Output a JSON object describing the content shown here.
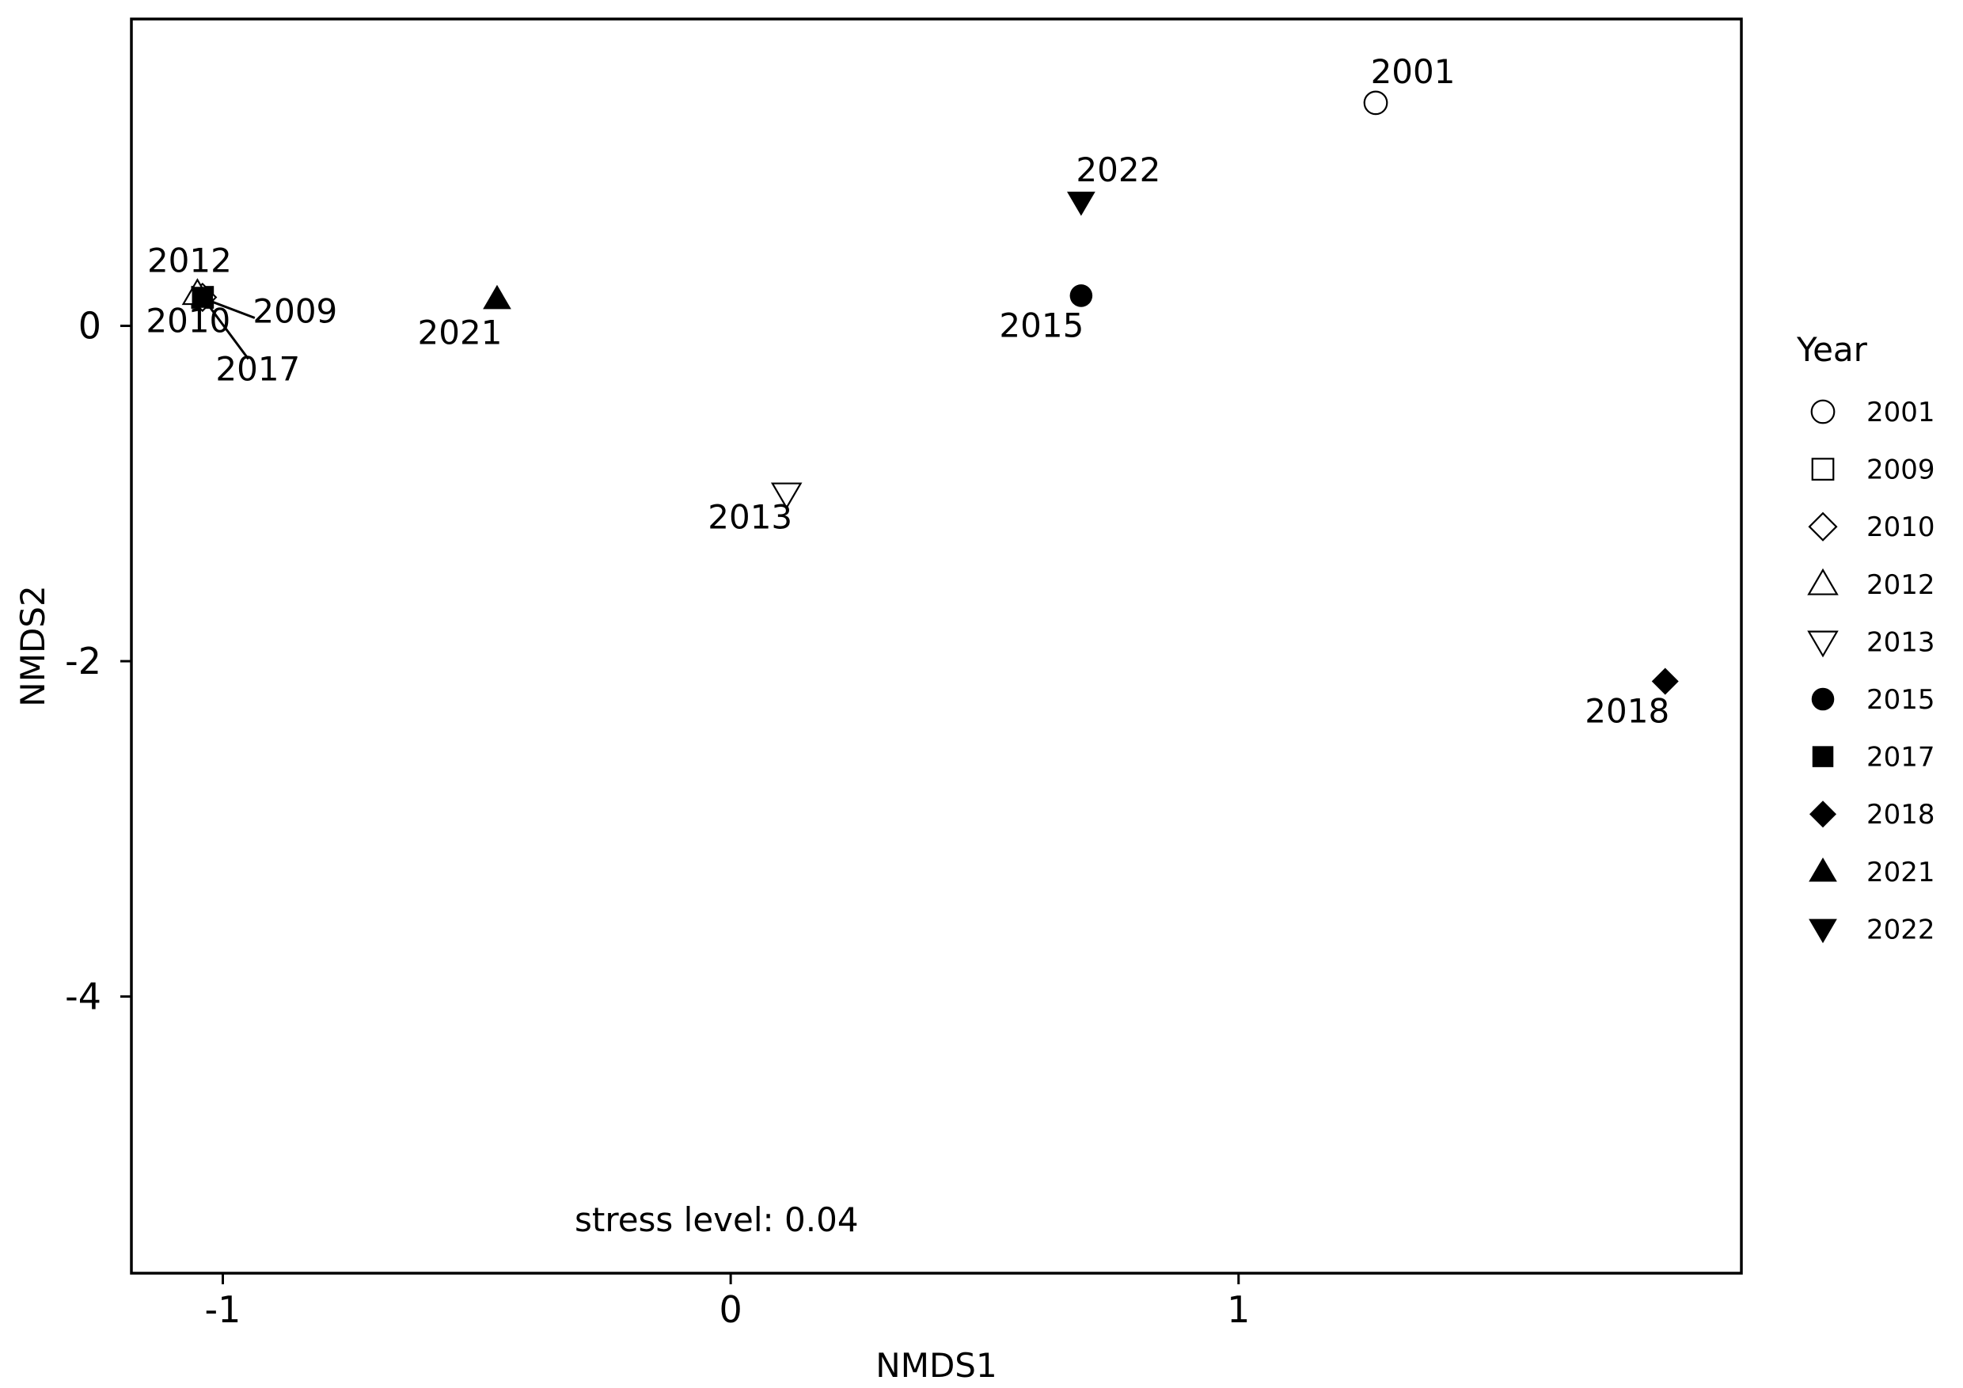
{
  "chart_data": {
    "type": "scatter",
    "xlabel": "NMDS1",
    "ylabel": "NMDS2",
    "xlim": [
      -1.18,
      1.99
    ],
    "ylim": [
      -5.65,
      1.83
    ],
    "x_ticks": [
      -1,
      0,
      1
    ],
    "y_ticks": [
      0,
      -2,
      -4
    ],
    "x_tick_labels": [
      "-1",
      "0",
      "1"
    ],
    "y_tick_labels": [
      "0",
      "-2",
      "-4"
    ],
    "grid": false,
    "annotation": "stress level: 0.04",
    "legend": {
      "title": "Year",
      "position": "right"
    },
    "points": [
      {
        "label": "2001",
        "x": 1.27,
        "y": 1.33,
        "marker": "circle-open"
      },
      {
        "label": "2009",
        "x": -1.04,
        "y": 0.17,
        "marker": "square-open"
      },
      {
        "label": "2010",
        "x": -1.04,
        "y": 0.17,
        "marker": "diamond-open"
      },
      {
        "label": "2012",
        "x": -1.05,
        "y": 0.19,
        "marker": "triangle-up-open"
      },
      {
        "label": "2013",
        "x": 0.11,
        "y": -1.0,
        "marker": "triangle-down-open"
      },
      {
        "label": "2015",
        "x": 0.69,
        "y": 0.18,
        "marker": "circle-filled"
      },
      {
        "label": "2017",
        "x": -1.04,
        "y": 0.17,
        "marker": "square-filled"
      },
      {
        "label": "2018",
        "x": 1.84,
        "y": -2.12,
        "marker": "diamond-filled"
      },
      {
        "label": "2021",
        "x": -0.46,
        "y": 0.16,
        "marker": "triangle-up-filled"
      },
      {
        "label": "2022",
        "x": 0.69,
        "y": 0.74,
        "marker": "triangle-down-filled"
      }
    ]
  }
}
